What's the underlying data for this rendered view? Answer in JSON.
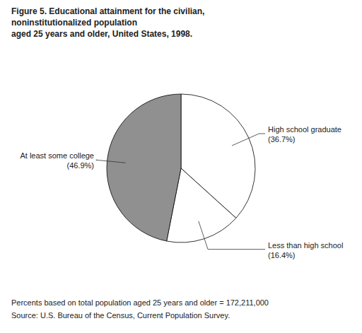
{
  "chart_data": {
    "type": "pie",
    "title": [
      "Figure 5. Educational attainment for the civilian,",
      "noninstitutionalized population",
      "aged 25 years  and older, United States, 1998."
    ],
    "categories": [
      "High school graduate",
      "Less than high school",
      "At least some college"
    ],
    "values": [
      36.7,
      16.4,
      46.9
    ],
    "value_labels": [
      "(36.7%)",
      "(16.4%)",
      "(46.9%)"
    ],
    "data_labels": true,
    "colors": [
      "#ffffff",
      "#ffffff",
      "#909090"
    ],
    "annotations": [
      "Percents based on total population aged 25 years and older = 172,211,000",
      "Source: U.S. Bureau of the Census, Current Population Survey."
    ]
  }
}
